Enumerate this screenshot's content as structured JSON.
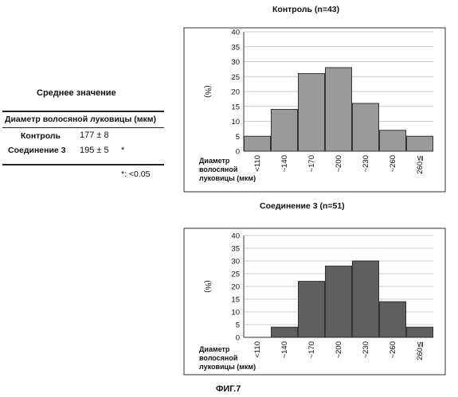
{
  "summary": {
    "title": "Среднее значение",
    "header": "Диаметр волосяной луковицы (мкм)",
    "rows": [
      {
        "label": "Контроль",
        "value": "177 ± 8",
        "mark": ""
      },
      {
        "label": "Соединение 3",
        "value": "195 ± 5",
        "mark": "*"
      }
    ],
    "note": "*: <0.05"
  },
  "figure_caption": "ФИГ.7",
  "chart_data": [
    {
      "type": "bar",
      "title": "Контроль",
      "title_n": "(n=43)",
      "xlabel": [
        "Диаметр",
        "волосяной",
        "луковицы (мкм)"
      ],
      "ylabel": "(%)",
      "categories": [
        "<110",
        "~140",
        "~170",
        "~200",
        "~230",
        "~260",
        "260≦"
      ],
      "values": [
        5,
        14,
        26,
        28,
        16,
        7,
        5
      ],
      "ylim": [
        0,
        40
      ],
      "yticks": [
        0,
        5,
        10,
        15,
        20,
        25,
        30,
        35,
        40
      ],
      "grid": true,
      "bar_fill": "#9a9a9a",
      "color_dark": "#333333"
    },
    {
      "type": "bar",
      "title": "Соединение 3 (n=51)",
      "title_n": "",
      "xlabel": [
        "Диаметр",
        "волосяной",
        "луковицы (мкм)"
      ],
      "ylabel": "(%)",
      "categories": [
        "<110",
        "~140",
        "~170",
        "~200",
        "~230",
        "~260",
        "260≦"
      ],
      "values": [
        0,
        4,
        22,
        28,
        30,
        14,
        4
      ],
      "ylim": [
        0,
        40
      ],
      "yticks": [
        0,
        5,
        10,
        15,
        20,
        25,
        30,
        35,
        40
      ],
      "grid": true,
      "bar_fill": "#5f5f5f",
      "color_dark": "#333333"
    }
  ]
}
